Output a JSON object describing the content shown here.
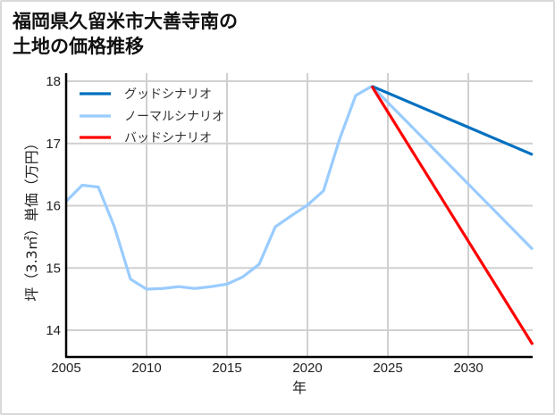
{
  "title_line1": "福岡県久留米市大善寺南の",
  "title_line2": "土地の価格推移",
  "chart_data": {
    "type": "line",
    "title": "福岡県久留米市大善寺南の土地の価格推移",
    "xlabel": "年",
    "ylabel": "坪（3.3㎡）単価（万円）",
    "xlim": [
      2005,
      2034
    ],
    "ylim": [
      13.6,
      18.2
    ],
    "x_ticks": [
      2005,
      2010,
      2015,
      2020,
      2025,
      2030
    ],
    "y_ticks": [
      14,
      15,
      16,
      17,
      18
    ],
    "grid": true,
    "legend_position": "upper left",
    "series": [
      {
        "name": "グッドシナリオ",
        "color": "#0070c0",
        "x": [
          2024,
          2034
        ],
        "values": [
          17.92,
          16.82
        ]
      },
      {
        "name": "ノーマルシナリオ",
        "color": "#99ccff",
        "x": [
          2005,
          2006,
          2007,
          2008,
          2009,
          2010,
          2011,
          2012,
          2013,
          2014,
          2015,
          2016,
          2017,
          2018,
          2019,
          2020,
          2021,
          2022,
          2023,
          2024,
          2034
        ],
        "values": [
          16.07,
          16.33,
          16.3,
          15.66,
          14.82,
          14.66,
          14.67,
          14.7,
          14.67,
          14.7,
          14.74,
          14.86,
          15.06,
          15.66,
          15.84,
          16.01,
          16.24,
          17.07,
          17.77,
          17.92,
          15.3
        ]
      },
      {
        "name": "バッドシナリオ",
        "color": "#ff0000",
        "x": [
          2024,
          2034
        ],
        "values": [
          17.92,
          13.77
        ]
      }
    ]
  }
}
